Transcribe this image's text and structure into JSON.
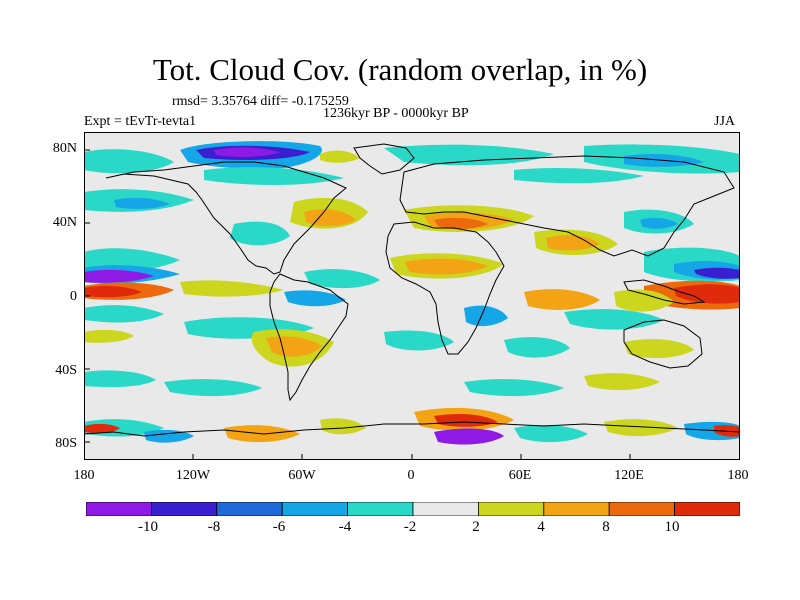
{
  "title": "Tot. Cloud Cov. (random overlap, in %)",
  "stats": "rmsd= 3.35764 diff= -0.175259",
  "period": "1236kyr BP - 0000kyr BP",
  "experiment": "Expt = tEvTr-tevta1",
  "season": "JJA",
  "lat_ticks": [
    "80N",
    "40N",
    "0",
    "40S",
    "80S"
  ],
  "lon_ticks": [
    "180",
    "120W",
    "60W",
    "0",
    "60E",
    "120E",
    "180"
  ],
  "colorbar": {
    "labels": [
      "-10",
      "-8",
      "-6",
      "-4",
      "-2",
      "2",
      "4",
      "8",
      "10"
    ],
    "colors": [
      "#8f1ae6",
      "#3a1fd0",
      "#1f6ad8",
      "#14a6e6",
      "#2ad8c8",
      "#e9e9e9",
      "#cdd61e",
      "#f2a414",
      "#ec6a0c",
      "#e02a0c"
    ]
  },
  "map_colors": {
    "background": "#e9e9e9",
    "coastline": "#000000"
  }
}
